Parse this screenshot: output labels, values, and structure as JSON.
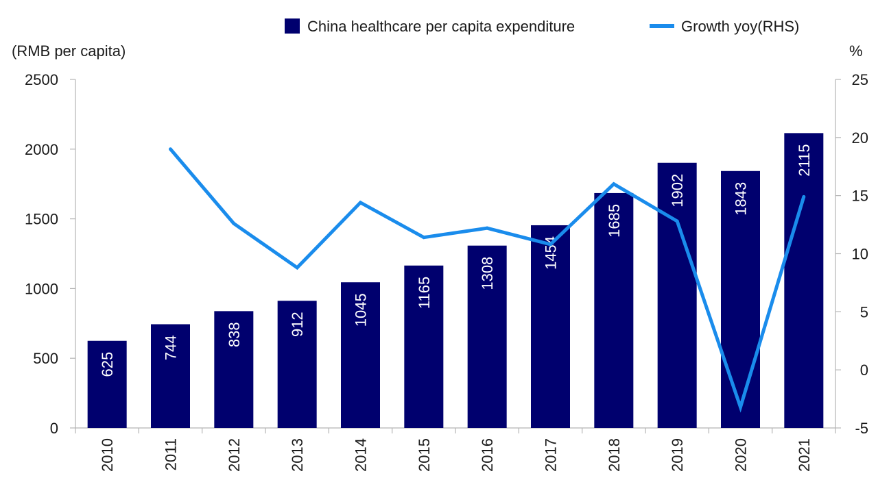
{
  "chart_data": {
    "type": "bar",
    "categories": [
      "2010",
      "2011",
      "2012",
      "2013",
      "2014",
      "2015",
      "2016",
      "2017",
      "2018",
      "2019",
      "2020",
      "2021"
    ],
    "series": [
      {
        "name": "China healthcare per capita expenditure",
        "type": "bar",
        "axis": "left",
        "color": "#00006e",
        "values": [
          625,
          744,
          838,
          912,
          1045,
          1165,
          1308,
          1454,
          1685,
          1902,
          1843,
          2115
        ]
      },
      {
        "name": "Growth yoy(RHS)",
        "type": "line",
        "axis": "right",
        "color": "#1a8cec",
        "values": [
          null,
          19.0,
          12.6,
          8.8,
          14.4,
          11.4,
          12.2,
          10.8,
          16.0,
          12.8,
          -3.2,
          14.9
        ]
      }
    ],
    "ylabel": "(RMB per capita)",
    "y2label": "%",
    "ylim": [
      0,
      2500
    ],
    "y2lim": [
      -5,
      25
    ],
    "yticks": [
      "0",
      "500",
      "1000",
      "1500",
      "2000",
      "2500"
    ],
    "y2ticks": [
      "-5",
      "0",
      "5",
      "10",
      "15",
      "20",
      "25"
    ],
    "grid": false,
    "legend": "top-right"
  }
}
